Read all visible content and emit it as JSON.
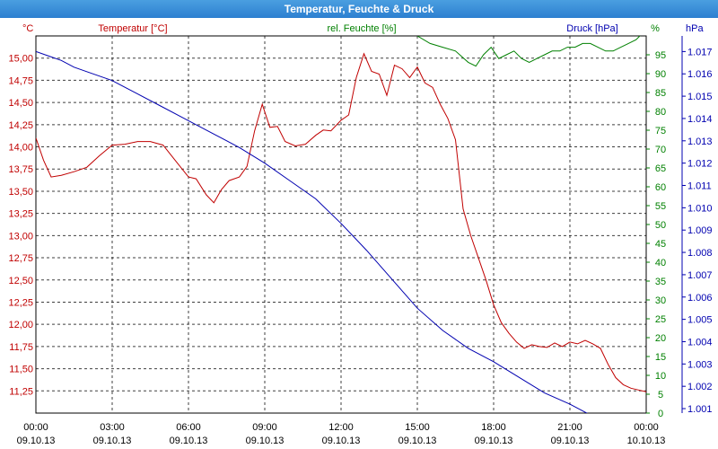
{
  "window": {
    "title": "Temperatur, Feuchte & Druck"
  },
  "colors": {
    "temp": "#c00000",
    "hum": "#008000",
    "press": "#0000b0",
    "grid": "#000000"
  },
  "chart_data": {
    "type": "line",
    "x_labels": [
      {
        "time": "00:00",
        "date": "09.10.13"
      },
      {
        "time": "03:00",
        "date": "09.10.13"
      },
      {
        "time": "06:00",
        "date": "09.10.13"
      },
      {
        "time": "09:00",
        "date": "09.10.13"
      },
      {
        "time": "12:00",
        "date": "09.10.13"
      },
      {
        "time": "15:00",
        "date": "09.10.13"
      },
      {
        "time": "18:00",
        "date": "09.10.13"
      },
      {
        "time": "21:00",
        "date": "09.10.13"
      },
      {
        "time": "00:00",
        "date": "10.10.13"
      }
    ],
    "xlim_hours": [
      0,
      24
    ],
    "axes": {
      "temp": {
        "label": "Temperatur [°C]",
        "unit": "°C",
        "min": 11.0,
        "max": 15.25,
        "ticks": [
          "11,25",
          "11,50",
          "11,75",
          "12,00",
          "12,25",
          "12,50",
          "12,75",
          "13,00",
          "13,25",
          "13,50",
          "13,75",
          "14,00",
          "14,25",
          "14,50",
          "14,75",
          "15,00"
        ]
      },
      "hum": {
        "label": "rel. Feuchte [%]",
        "unit": "%",
        "min": 0,
        "max": 100,
        "ticks": [
          "0",
          "5",
          "10",
          "15",
          "20",
          "25",
          "30",
          "35",
          "40",
          "45",
          "50",
          "55",
          "60",
          "65",
          "70",
          "75",
          "80",
          "85",
          "90",
          "95"
        ]
      },
      "press": {
        "label": "Druck [hPa]",
        "unit": "hPa",
        "min": 1.0008,
        "max": 1.0177,
        "ticks": [
          "1.001",
          "1.002",
          "1.003",
          "1.004",
          "1.005",
          "1.006",
          "1.007",
          "1.008",
          "1.009",
          "1.010",
          "1.011",
          "1.012",
          "1.013",
          "1.014",
          "1.015",
          "1.016",
          "1.017"
        ]
      }
    },
    "series": [
      {
        "name": "Temperatur [°C]",
        "axis": "temp",
        "x": [
          0,
          0.3,
          0.6,
          1,
          1.5,
          2,
          2.5,
          3,
          3.5,
          4,
          4.5,
          5,
          5.5,
          6,
          6.3,
          6.7,
          7,
          7.3,
          7.6,
          8,
          8.3,
          8.6,
          8.9,
          9.2,
          9.5,
          9.8,
          10.2,
          10.6,
          11,
          11.3,
          11.6,
          12,
          12.3,
          12.6,
          12.9,
          13.2,
          13.5,
          13.8,
          14.1,
          14.4,
          14.7,
          15,
          15.3,
          15.6,
          15.9,
          16.2,
          16.5,
          16.8,
          17.1,
          17.4,
          17.7,
          18,
          18.3,
          18.6,
          18.9,
          19.2,
          19.5,
          19.8,
          20.1,
          20.4,
          20.7,
          21,
          21.3,
          21.6,
          21.9,
          22.2,
          22.5,
          22.8,
          23.1,
          23.4,
          23.7,
          24
        ],
        "y": [
          14.1,
          13.85,
          13.66,
          13.68,
          13.72,
          13.77,
          13.9,
          14.02,
          14.03,
          14.06,
          14.06,
          14.02,
          13.84,
          13.66,
          13.64,
          13.46,
          13.37,
          13.52,
          13.62,
          13.66,
          13.78,
          14.18,
          14.48,
          14.22,
          14.23,
          14.06,
          14.01,
          14.03,
          14.13,
          14.19,
          14.18,
          14.3,
          14.36,
          14.78,
          15.05,
          14.85,
          14.82,
          14.58,
          14.92,
          14.88,
          14.78,
          14.9,
          14.72,
          14.67,
          14.48,
          14.32,
          14.08,
          13.3,
          13.0,
          12.75,
          12.5,
          12.22,
          12.02,
          11.9,
          11.8,
          11.73,
          11.77,
          11.75,
          11.74,
          11.79,
          11.75,
          11.8,
          11.78,
          11.82,
          11.78,
          11.73,
          11.55,
          11.4,
          11.32,
          11.28,
          11.26,
          11.24
        ]
      },
      {
        "name": "rel. Feuchte [%]",
        "axis": "hum",
        "x": [
          15,
          15.5,
          16,
          16.5,
          17,
          17.3,
          17.6,
          17.9,
          18.2,
          18.5,
          18.8,
          19.1,
          19.4,
          19.7,
          20,
          20.3,
          20.6,
          20.9,
          21.2,
          21.5,
          21.8,
          22.1,
          22.4,
          22.7,
          23,
          23.3,
          23.6,
          23.9
        ],
        "y": [
          100,
          98,
          97,
          96,
          93,
          92,
          95,
          97,
          94,
          95,
          96,
          94,
          93,
          94,
          95,
          96,
          96,
          97,
          97,
          98,
          98,
          97,
          96,
          96,
          97,
          98,
          99,
          101
        ]
      },
      {
        "name": "Druck [hPa]",
        "axis": "press",
        "x": [
          0,
          0.5,
          1,
          1.5,
          2,
          3,
          4,
          5,
          6,
          7,
          8,
          9,
          10,
          11,
          12,
          13,
          14,
          15,
          16,
          17,
          18,
          19,
          20,
          21,
          22,
          23,
          24
        ],
        "y": [
          1.017,
          1.0168,
          1.0166,
          1.0163,
          1.0161,
          1.0157,
          1.0151,
          1.0145,
          1.0139,
          1.0133,
          1.0127,
          1.012,
          1.0112,
          1.0104,
          1.0093,
          1.0081,
          1.0068,
          1.0055,
          1.0045,
          1.0037,
          1.0031,
          1.0024,
          1.0017,
          1.0012,
          1.0006,
          1.0001,
          0.99975
        ]
      }
    ],
    "grid": true
  }
}
